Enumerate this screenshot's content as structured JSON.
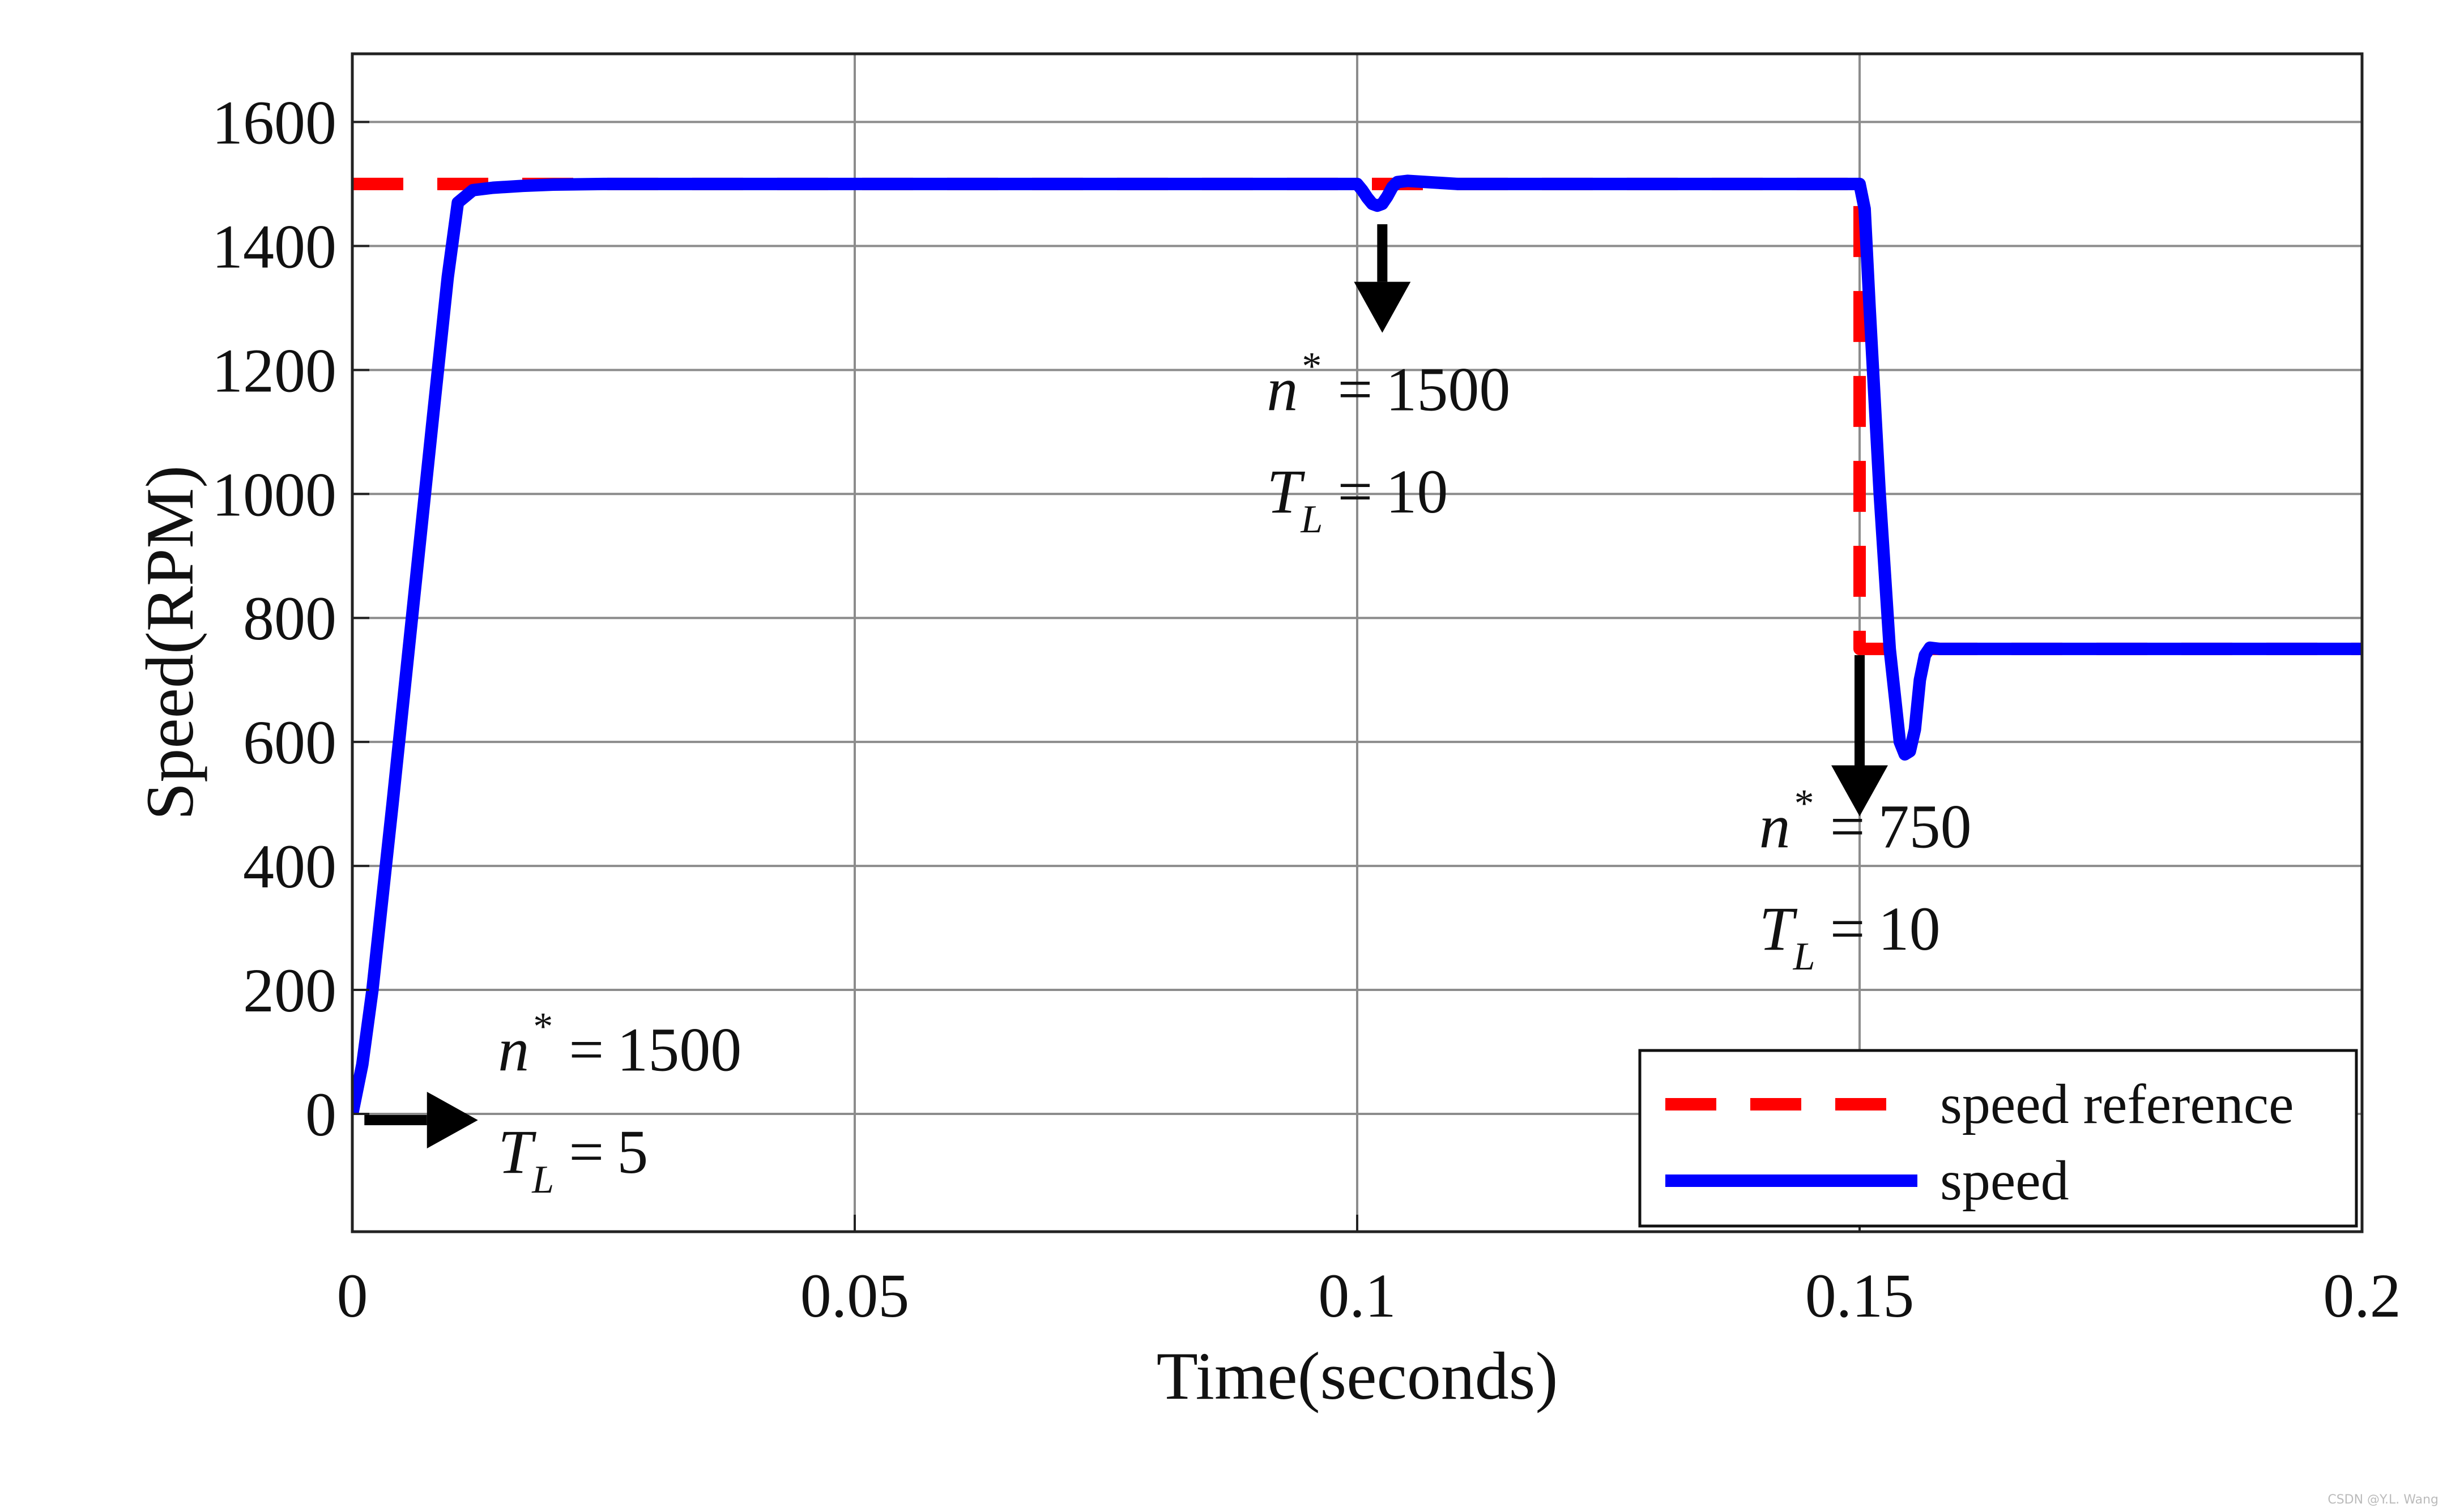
{
  "chart_data": {
    "type": "line",
    "xlabel": "Time(seconds)",
    "ylabel": "Speed(RPM)",
    "xlim": [
      0,
      0.2
    ],
    "ylim": [
      -190,
      1710
    ],
    "xticks": [
      0,
      0.05,
      0.1,
      0.15,
      0.2
    ],
    "xtick_labels": [
      "0",
      "0.05",
      "0.1",
      "0.15",
      "0.2"
    ],
    "yticks": [
      0,
      200,
      400,
      600,
      800,
      1000,
      1200,
      1400,
      1600
    ],
    "ytick_labels": [
      "0",
      "200",
      "400",
      "600",
      "800",
      "1000",
      "1200",
      "1400",
      "1600"
    ],
    "grid": true,
    "legend_position": "bottom-right",
    "series": [
      {
        "name": "speed reference",
        "color": "#ff0000",
        "style": "dashed",
        "x": [
          0,
          0.15,
          0.15,
          0.2
        ],
        "y": [
          1500,
          1500,
          750,
          750
        ]
      },
      {
        "name": "speed",
        "color": "#0000ff",
        "style": "solid",
        "x": [
          0,
          0.001,
          0.002,
          0.004,
          0.006,
          0.008,
          0.0095,
          0.0105,
          0.012,
          0.014,
          0.017,
          0.02,
          0.025,
          0.05,
          0.09,
          0.1,
          0.1005,
          0.101,
          0.1015,
          0.102,
          0.1025,
          0.103,
          0.1035,
          0.104,
          0.105,
          0.11,
          0.14,
          0.15,
          0.1505,
          0.151,
          0.152,
          0.153,
          0.154,
          0.1545,
          0.155,
          0.1555,
          0.156,
          0.1565,
          0.157,
          0.158,
          0.16,
          0.17,
          0.2
        ],
        "y": [
          0,
          80,
          200,
          500,
          810,
          1120,
          1350,
          1470,
          1490,
          1494,
          1497,
          1499,
          1500,
          1500,
          1500,
          1500,
          1490,
          1478,
          1468,
          1465,
          1468,
          1480,
          1495,
          1503,
          1505,
          1500,
          1500,
          1500,
          1460,
          1300,
          1000,
          750,
          600,
          580,
          585,
          620,
          700,
          740,
          752,
          750,
          750,
          750,
          750
        ]
      }
    ],
    "annotations": [
      {
        "var": "n",
        "sup": "*",
        "value": "1500",
        "x": 0.0145,
        "y": 70
      },
      {
        "var": "T",
        "sub": "L",
        "value": "5",
        "x": 0.0145,
        "y": -95
      },
      {
        "var": "n",
        "sup": "*",
        "value": "1500",
        "x": 0.091,
        "y": 1135
      },
      {
        "var": "T",
        "sub": "L",
        "value": "10",
        "x": 0.091,
        "y": 970
      },
      {
        "var": "n",
        "sup": "*",
        "value": "750",
        "x": 0.14,
        "y": 430
      },
      {
        "var": "T",
        "sub": "L",
        "value": "10",
        "x": 0.14,
        "y": 265
      }
    ],
    "arrows": [
      {
        "x1": 0.0012,
        "y1": -10,
        "x2": 0.0125,
        "y2": -10
      },
      {
        "x1": 0.1025,
        "y1": 1435,
        "x2": 0.1025,
        "y2": 1260
      },
      {
        "x1": 0.15,
        "y1": 740,
        "x2": 0.15,
        "y2": 480
      }
    ]
  },
  "watermark": "CSDN @Y.L. Wang"
}
